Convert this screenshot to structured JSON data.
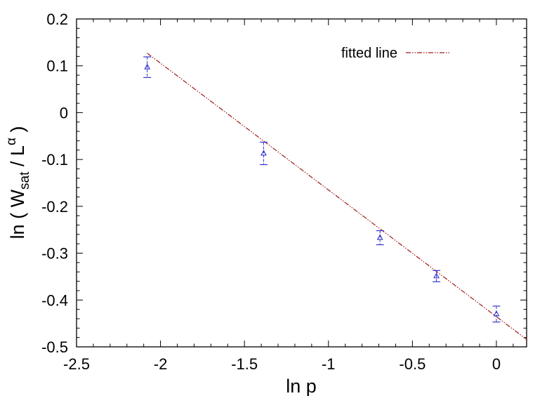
{
  "chart_data": {
    "type": "scatter",
    "title": "",
    "xlabel": "ln p",
    "ylabel": {
      "prefix": "ln ( W",
      "sub": "sat",
      "middle": " / L",
      "sup": "α",
      "suffix": " )"
    },
    "xlim": [
      -2.5,
      0.18
    ],
    "ylim": [
      -0.5,
      0.2
    ],
    "x_ticks": [
      -2.5,
      -2,
      -1.5,
      -1,
      -0.5,
      0
    ],
    "x_tick_labels": [
      "-2.5",
      "-2",
      "-1.5",
      "-1",
      "-0.5",
      "0"
    ],
    "y_ticks": [
      -0.5,
      -0.4,
      -0.3,
      -0.2,
      -0.1,
      0,
      0.1,
      0.2
    ],
    "y_tick_labels": [
      "-0.5",
      "-0.4",
      "-0.3",
      "-0.2",
      "-0.1",
      "0",
      "0.1",
      "0.2"
    ],
    "grid": false,
    "legend_position": "top-right",
    "points": {
      "x": [
        -2.079,
        -1.386,
        -0.693,
        -0.357,
        0.0
      ],
      "y": [
        0.097,
        -0.087,
        -0.267,
        -0.349,
        -0.43
      ],
      "err": [
        0.022,
        0.024,
        0.015,
        0.012,
        0.017
      ],
      "color": "#3333cc"
    },
    "fit_line": {
      "name": "fitted line",
      "slope": -0.2705,
      "intercept": -0.4355,
      "x_start": -2.079,
      "x_end": 0.18,
      "color": "#a01818"
    }
  }
}
